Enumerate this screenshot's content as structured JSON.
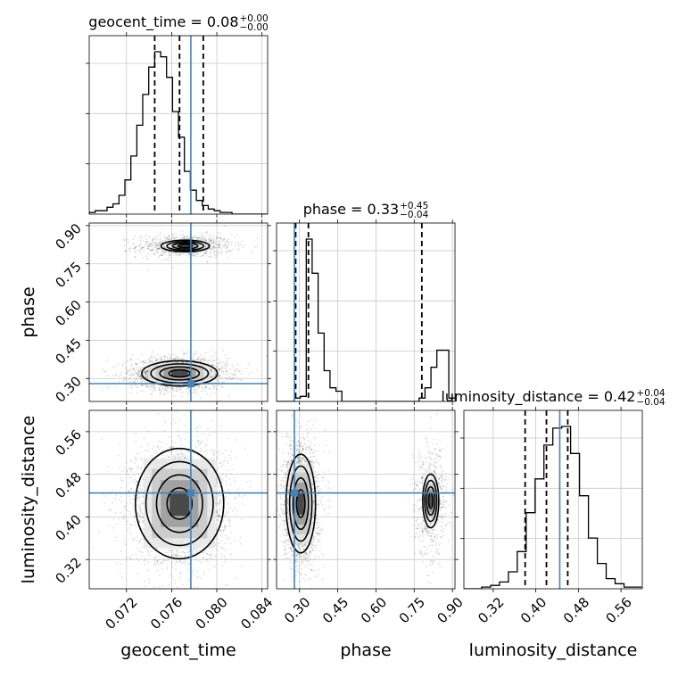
{
  "chart_data": {
    "type": "corner",
    "parameters": [
      "geocent_time",
      "phase",
      "luminosity_distance"
    ],
    "axis_labels": [
      "geocent_time",
      "phase",
      "luminosity_distance"
    ],
    "truth_color": "#4682b4",
    "titles": [
      {
        "main": "geocent_time = 0.08",
        "upper": "+0.00",
        "lower": "−0.00"
      },
      {
        "main": "phase = 0.33",
        "upper": "+0.45",
        "lower": "−0.04"
      },
      {
        "main": "luminosity_distance = 0.42",
        "upper": "+0.04",
        "lower": "−0.04"
      }
    ],
    "ranges": [
      [
        0.0687,
        0.0845
      ],
      [
        0.21,
        0.91
      ],
      [
        0.265,
        0.6
      ]
    ],
    "ticks": [
      [
        0.072,
        0.076,
        0.08,
        0.084
      ],
      [
        0.3,
        0.45,
        0.6,
        0.75,
        0.9
      ],
      [
        0.32,
        0.4,
        0.48,
        0.56
      ]
    ],
    "tick_labels": [
      [
        "0.072",
        "0.076",
        "0.080",
        "0.084"
      ],
      [
        "0.30",
        "0.45",
        "0.60",
        "0.75",
        "0.90"
      ],
      [
        "0.32",
        "0.40",
        "0.48",
        "0.56"
      ]
    ],
    "truths": [
      0.0777,
      0.28,
      0.445
    ],
    "quantiles": [
      [
        0.0745,
        0.0767,
        0.0788
      ],
      [
        0.285,
        0.335,
        0.78
      ],
      [
        0.38,
        0.42,
        0.46
      ]
    ],
    "histograms": [
      {
        "bin_start": 0.0687,
        "bin_width": 0.000527,
        "counts": [
          1,
          2,
          2,
          4,
          6,
          11,
          20,
          34,
          52,
          70,
          86,
          95,
          92,
          80,
          60,
          45,
          25,
          14,
          8,
          5,
          3,
          2,
          1,
          1,
          0,
          0,
          0,
          0,
          0,
          0
        ]
      },
      {
        "bin_start": 0.21,
        "bin_width": 0.0233,
        "counts": [
          0,
          0,
          0,
          2,
          3,
          95,
          75,
          40,
          18,
          8,
          6,
          0,
          0,
          0,
          0,
          0,
          0,
          0,
          0,
          0,
          0,
          0,
          0,
          0,
          2,
          8,
          20,
          30,
          30,
          2
        ]
      },
      {
        "bin_start": 0.265,
        "bin_width": 0.0167,
        "counts": [
          0,
          0,
          1,
          2,
          4,
          10,
          22,
          45,
          65,
          85,
          95,
          96,
          80,
          55,
          30,
          15,
          6,
          3,
          1,
          1
        ]
      }
    ],
    "blobs": [
      {
        "x": 1,
        "y": 0,
        "cx": 0.0772,
        "cy": 0.82,
        "sx": 0.0017,
        "sy": 0.018,
        "n": 900
      },
      {
        "x": 1,
        "y": 0,
        "cx": 0.0767,
        "cy": 0.32,
        "sx": 0.0017,
        "sy": 0.025,
        "n": 2200
      },
      {
        "x": 2,
        "y": 0,
        "cx": 0.0767,
        "cy": 0.425,
        "sx": 0.0017,
        "sy": 0.045,
        "n": 3000
      },
      {
        "x": 2,
        "y": 1,
        "cx": 0.305,
        "cy": 0.425,
        "sx": 0.028,
        "sy": 0.045,
        "n": 2400
      },
      {
        "x": 2,
        "y": 1,
        "cx": 0.815,
        "cy": 0.43,
        "sx": 0.025,
        "sy": 0.04,
        "n": 700
      }
    ],
    "grid": true
  }
}
